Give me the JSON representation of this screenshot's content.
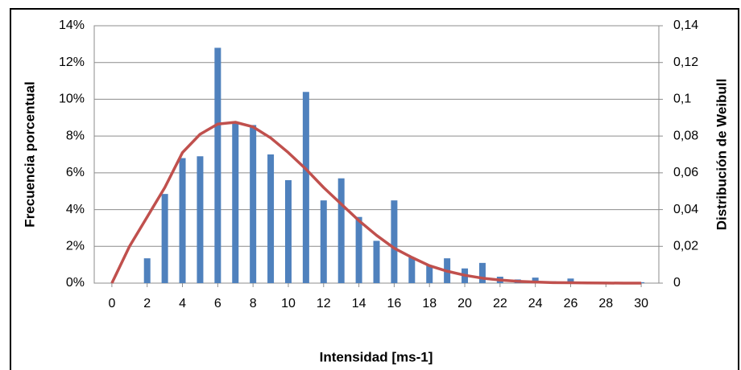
{
  "chart_data": {
    "type": "bar",
    "x_label": "Intensidad [ms-1]",
    "y_label": "Frecuencia porcentual",
    "y2_label": "Distribución de Weibull",
    "x": [
      0,
      1,
      2,
      3,
      4,
      5,
      6,
      7,
      8,
      9,
      10,
      11,
      12,
      13,
      14,
      15,
      16,
      17,
      18,
      19,
      20,
      21,
      22,
      23,
      24,
      25,
      26,
      27,
      28,
      29,
      30
    ],
    "xlim": [
      -1,
      31
    ],
    "xticks": [
      0,
      2,
      4,
      6,
      8,
      10,
      12,
      14,
      16,
      18,
      20,
      22,
      24,
      26,
      28,
      30
    ],
    "ylim": [
      0,
      14
    ],
    "yticks": [
      {
        "value": 0,
        "label": "0%"
      },
      {
        "value": 2,
        "label": "2%"
      },
      {
        "value": 4,
        "label": "4%"
      },
      {
        "value": 6,
        "label": "6%"
      },
      {
        "value": 8,
        "label": "8%"
      },
      {
        "value": 10,
        "label": "10%"
      },
      {
        "value": 12,
        "label": "12%"
      },
      {
        "value": 14,
        "label": "14%"
      }
    ],
    "y2lim": [
      0,
      0.14
    ],
    "y2ticks": [
      0,
      {
        "value": 0.02,
        "label": "0,02"
      },
      {
        "value": 0.04,
        "label": "0,04"
      },
      {
        "value": 0.06,
        "label": "0,06"
      },
      {
        "value": 0.08,
        "label": "0,08"
      },
      {
        "value": 0.1,
        "label": "0,1"
      },
      {
        "value": 0.12,
        "label": "0,12"
      },
      {
        "value": 0.14,
        "label": "0,14"
      }
    ],
    "grid": true,
    "series": [
      {
        "type": "bar",
        "color": "#4f81bd",
        "values": [
          null,
          null,
          1.35,
          4.85,
          6.8,
          6.9,
          12.8,
          8.7,
          8.6,
          7.0,
          5.6,
          10.4,
          4.5,
          5.7,
          3.6,
          2.3,
          4.5,
          1.4,
          0.95,
          1.35,
          0.8,
          1.1,
          0.35,
          0.2,
          0.3,
          0.1,
          0.25,
          0.05,
          0.05,
          0.05,
          0.05
        ]
      },
      {
        "type": "line",
        "axis": "y2",
        "color": "#c0504d",
        "values": [
          0,
          0.02,
          0.036,
          0.052,
          0.071,
          0.081,
          0.0865,
          0.0875,
          0.085,
          0.079,
          0.071,
          0.062,
          0.052,
          0.043,
          0.034,
          0.026,
          0.019,
          0.014,
          0.0095,
          0.0065,
          0.0043,
          0.0027,
          0.0017,
          0.001,
          0.0006,
          0.0003,
          0.0002,
          0.0001,
          5e-05,
          0,
          0
        ]
      }
    ]
  }
}
